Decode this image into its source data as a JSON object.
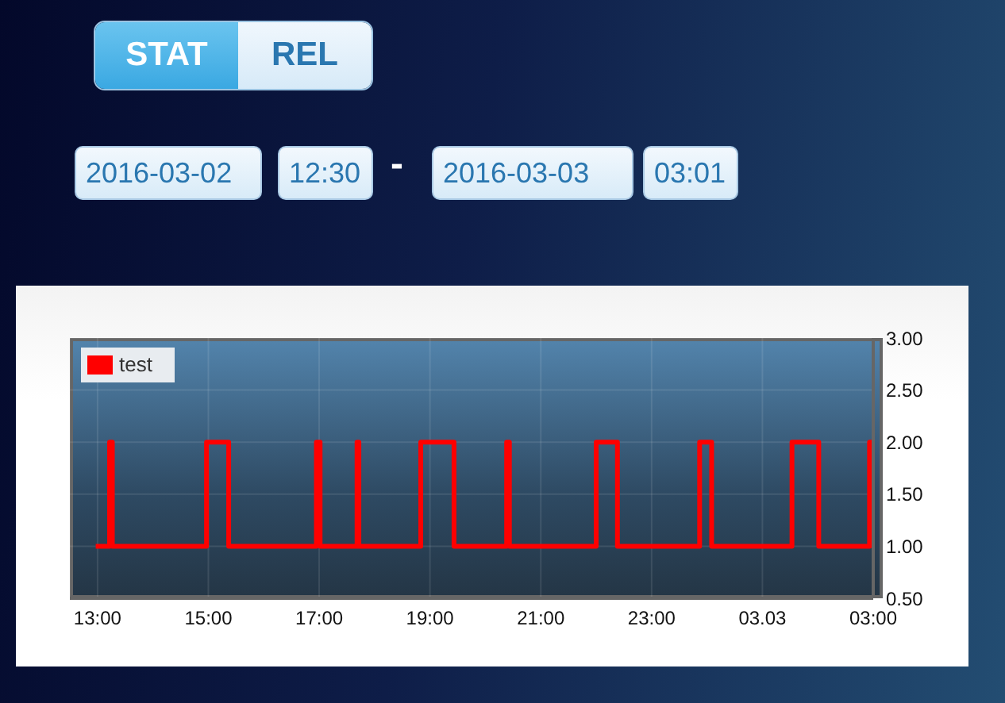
{
  "chart_data": {
    "type": "step",
    "annotations": [
      "STAT",
      "REL",
      "2016-03-02",
      "12:30",
      "-",
      "2016-03-03",
      "03:01"
    ],
    "x": [
      "2016-03-02T12:58",
      "2016-03-02T13:13",
      "2016-03-02T13:16",
      "2016-03-02T14:58",
      "2016-03-02T15:22",
      "2016-03-02T16:57",
      "2016-03-02T17:01",
      "2016-03-02T17:41",
      "2016-03-02T17:43",
      "2016-03-02T18:50",
      "2016-03-02T19:26",
      "2016-03-02T20:23",
      "2016-03-02T20:26",
      "2016-03-02T22:00",
      "2016-03-02T22:23",
      "2016-03-02T23:52",
      "2016-03-03T00:05",
      "2016-03-03T01:32",
      "2016-03-03T02:01",
      "2016-03-03T02:56",
      "2016-03-03T03:00"
    ],
    "series": [
      {
        "name": "test",
        "color": "#ff0000",
        "values": [
          1,
          2,
          1,
          2,
          1,
          2,
          1,
          2,
          1,
          2,
          1,
          2,
          1,
          2,
          1,
          2,
          1,
          2,
          1,
          2,
          2
        ]
      }
    ],
    "xlim": [
      "2016-03-02T12:30",
      "2016-03-03T03:00"
    ],
    "xticks": [
      {
        "value": "2016-03-02T13:00",
        "label": "13:00"
      },
      {
        "value": "2016-03-02T15:00",
        "label": "15:00"
      },
      {
        "value": "2016-03-02T17:00",
        "label": "17:00"
      },
      {
        "value": "2016-03-02T19:00",
        "label": "19:00"
      },
      {
        "value": "2016-03-02T21:00",
        "label": "21:00"
      },
      {
        "value": "2016-03-02T23:00",
        "label": "23:00"
      },
      {
        "value": "2016-03-03T01:00",
        "label": "03.03"
      },
      {
        "value": "2016-03-03T03:00",
        "label": "03:00"
      }
    ],
    "ylim": [
      0.5,
      3
    ],
    "yticks": [
      {
        "value": 0.5,
        "label": "0.50"
      },
      {
        "value": 1,
        "label": "1.00"
      },
      {
        "value": 1.5,
        "label": "1.50"
      },
      {
        "value": 2,
        "label": "2.00"
      },
      {
        "value": 2.5,
        "label": "2.50"
      },
      {
        "value": 3,
        "label": "3.00"
      }
    ],
    "grid": true,
    "legend": "top left"
  }
}
